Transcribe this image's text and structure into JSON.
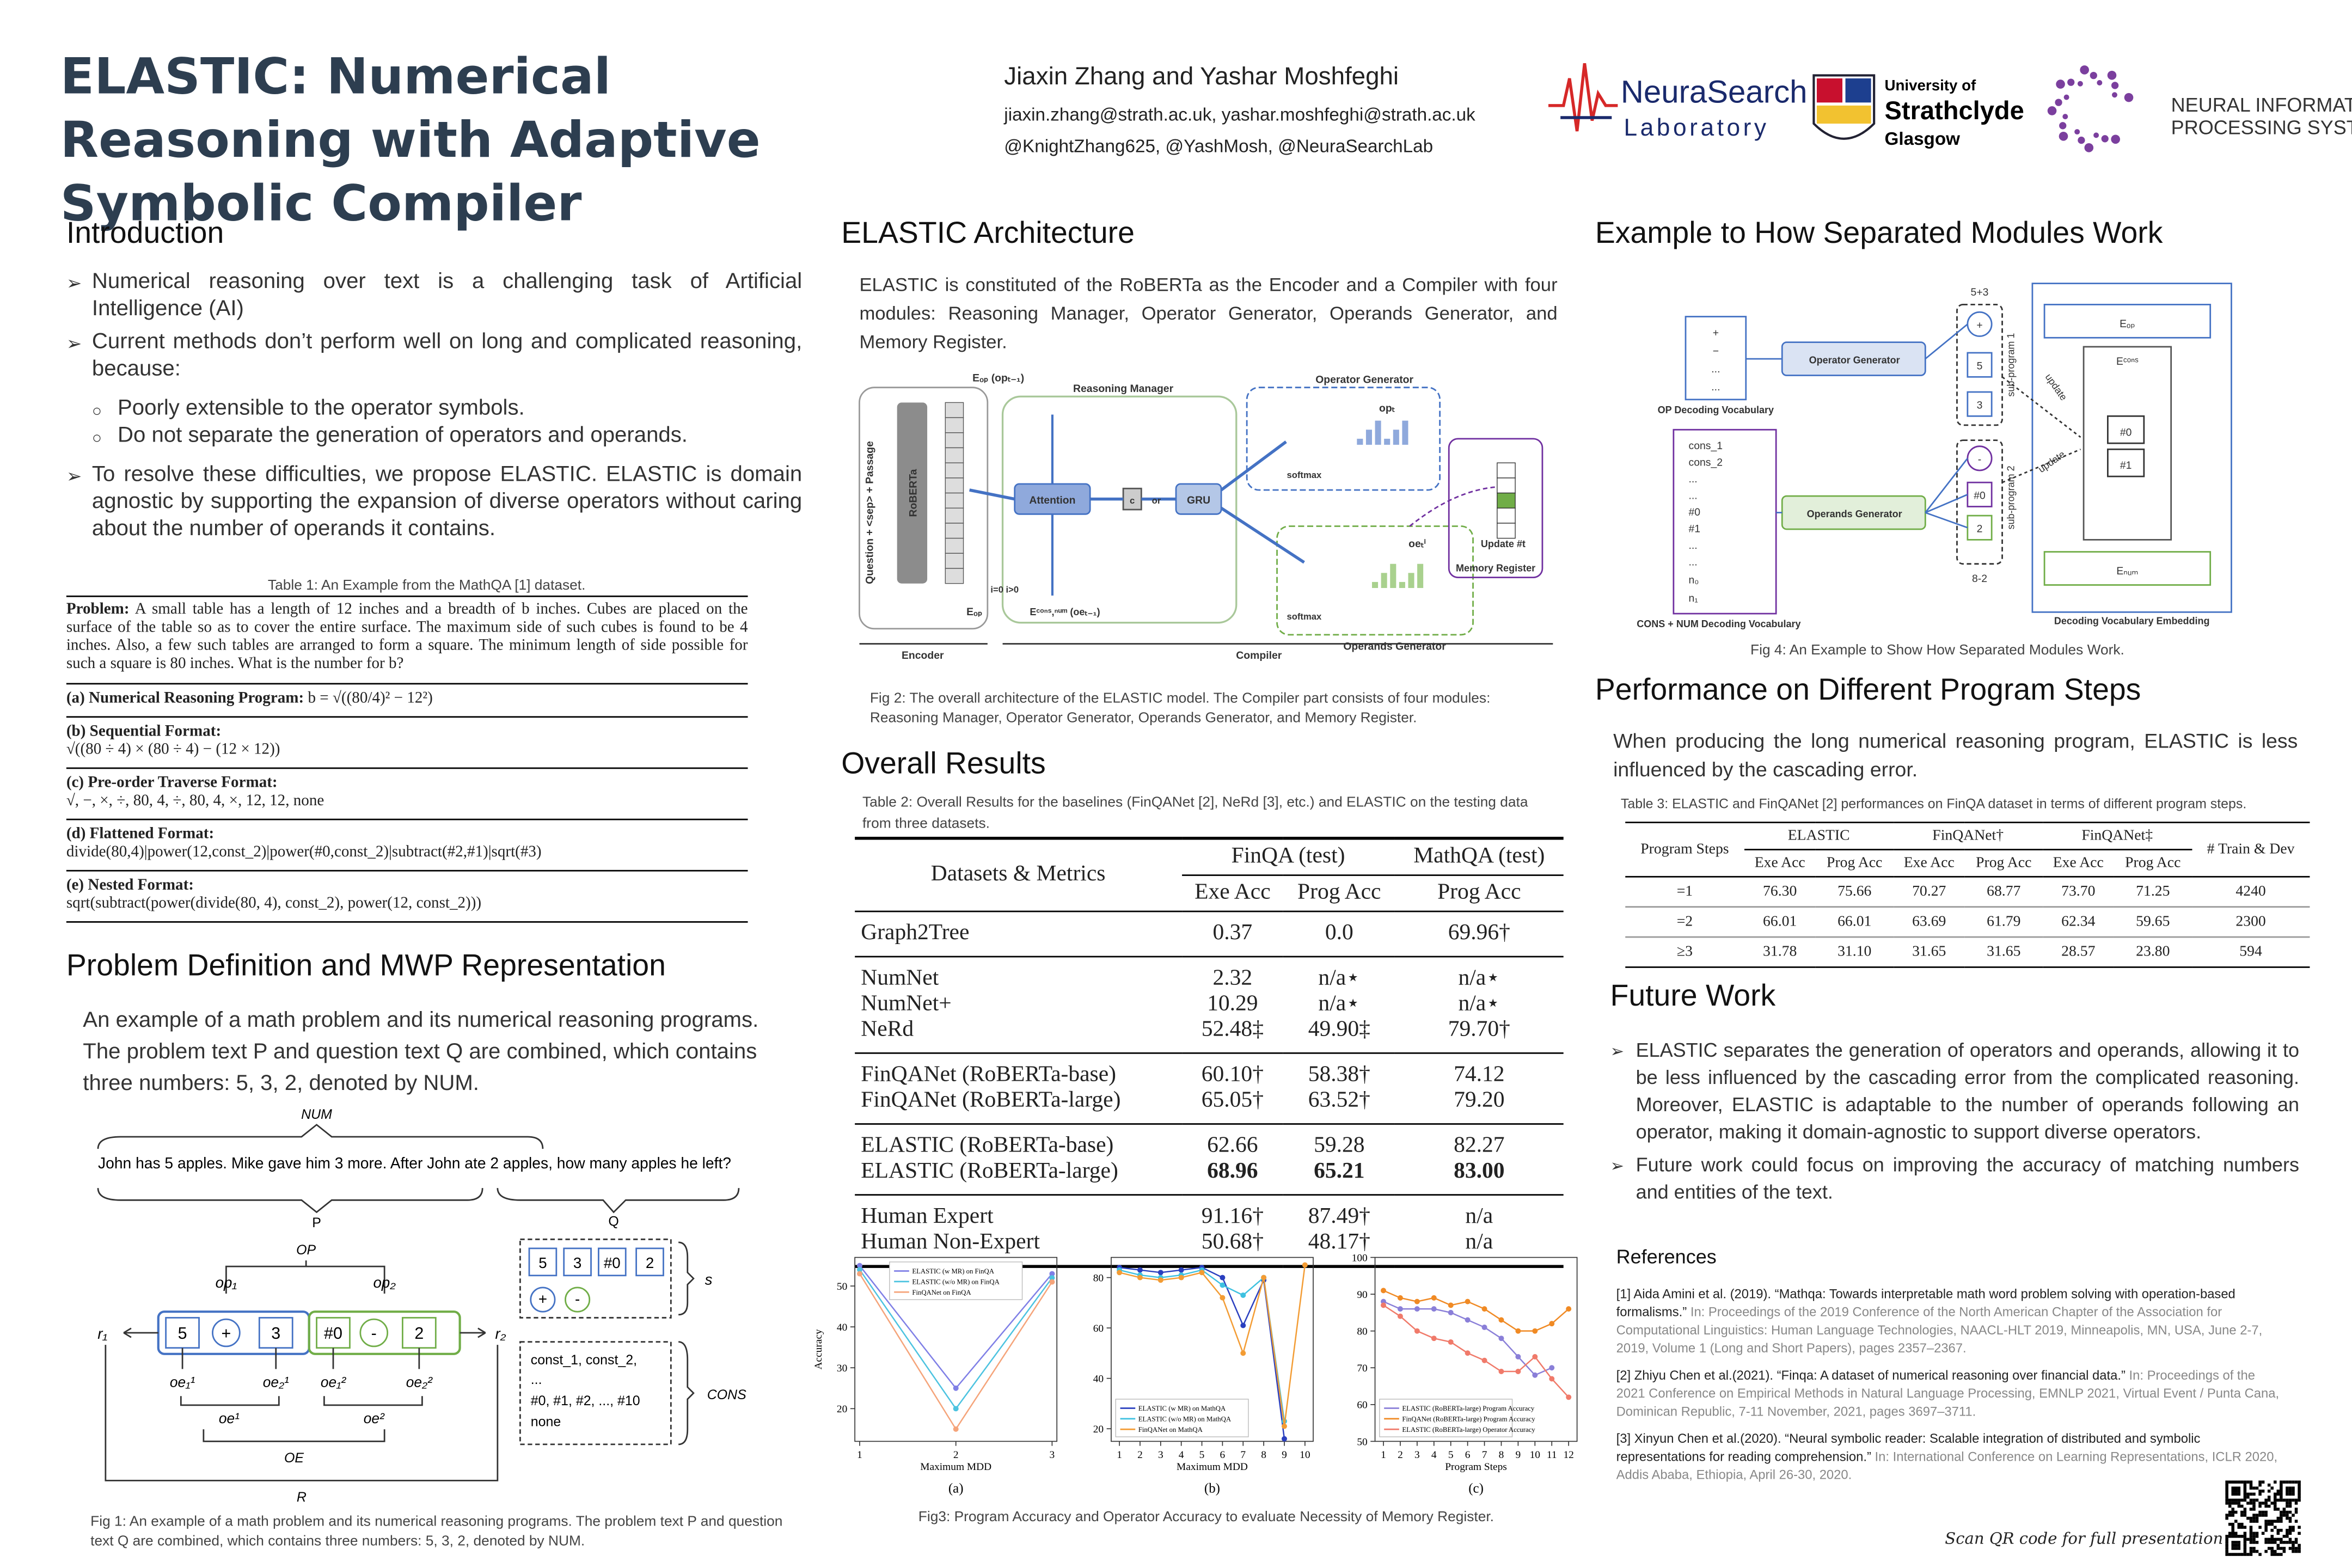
{
  "header": {
    "title": "ELASTIC: Numerical Reasoning with Adaptive Symbolic Compiler",
    "authors": "Jiaxin Zhang and Yashar Moshfeghi",
    "emails": "jiaxin.zhang@strath.ac.uk, yashar.moshfeghi@strath.ac.uk",
    "handles": "@KnightZhang625, @YashMosh, @NeuraSearchLab",
    "logos": [
      "NeuraSearch",
      "Laboratory",
      "University of",
      "Strathclyde",
      "Glasgow",
      "NEURAL INFORMATION",
      "PROCESSING SYSTEMS"
    ]
  },
  "introduction": {
    "heading": "Introduction",
    "items": [
      {
        "text": "Numerical reasoning over text is a challenging task of Artificial Intelligence (AI)"
      },
      {
        "text": "Current methods don’t perform well on long and complicated reasoning, because:",
        "sub": [
          "Poorly extensible to the operator symbols.",
          "Do not separate the generation of operators and operands."
        ]
      },
      {
        "text": "To resolve these difficulties, we propose ELASTIC. ELASTIC is domain agnostic by supporting the expansion of diverse operators without caring about the number of operands it contains."
      }
    ]
  },
  "table1": {
    "caption": "Table 1: An Example from the MathQA [1] dataset.",
    "problem_label": "Problem:",
    "problem": "A small table has a length of 12 inches and a breadth of b inches. Cubes are placed on the surface of the table so as to cover the entire surface. The maximum side of such cubes is found to be 4 inches. Also, a few such tables are arranged to form a square. The minimum length of side possible for such a square is 80 inches. What is the number for b?",
    "rows": [
      {
        "label": "(a) Numerical Reasoning Program:",
        "text": "b = √((80/4)² − 12²)"
      },
      {
        "label": "(b) Sequential Format:",
        "text": "√((80 ÷ 4) × (80 ÷ 4) − (12 × 12))"
      },
      {
        "label": "(c) Pre-order Traverse Format:",
        "text": "√, −, ×, ÷, 80, 4, ÷, 80, 4, ×, 12, 12, none"
      },
      {
        "label": "(d) Flattened Format:",
        "text": "divide(80,4)|power(12,const_2)|power(#0,const_2)|subtract(#2,#1)|sqrt(#3)"
      },
      {
        "label": "(e) Nested Format:",
        "text": "sqrt(subtract(power(divide(80, 4), const_2), power(12, const_2)))"
      }
    ]
  },
  "problem_definition": {
    "heading": "Problem Definition and MWP Representation",
    "text": "An example of a math problem and its numerical reasoning programs. The problem text P and question text Q are combined, which contains three numbers: 5, 3, 2, denoted by NUM."
  },
  "figure1": {
    "caption": "Fig 1: An example of a math problem and its numerical reasoning programs. The problem text P and question text Q are combined, which contains three numbers: 5, 3, 2, denoted by NUM.",
    "labels": [
      "NUM",
      "John has 5 apples. Mike gave him 3 more. After John ate 2 apples, how many apples he left?",
      "P",
      "Q",
      "OP",
      "op₁",
      "op₂",
      "r₁",
      "r₂",
      "5",
      "+",
      "3",
      "#0",
      "-",
      "2",
      "oe₁¹",
      "oe₂¹",
      "oe₁²",
      "oe₂²",
      "oe¹",
      "oe²",
      "OE",
      "R",
      "5",
      "3",
      "#0",
      "2",
      "+",
      "-",
      "s",
      "const_1, const_2,",
      "...",
      "#0, #1, #2, ..., #10",
      "none",
      "CONS"
    ]
  },
  "architecture": {
    "heading": "ELASTIC Architecture",
    "text": "ELASTIC is constituted of the RoBERTa as the Encoder and a Compiler with four modules: Reasoning Manager, Operator Generator, Operands Generator, and Memory Register."
  },
  "figure2": {
    "caption": "Fig 2: The overall architecture of the ELASTIC model.  The  Compiler part consists of four modules: Reasoning Manager, Operator Generator, Operands Generator, and Memory Register.",
    "labels": [
      "Question + <sep> + Passage",
      "RoBERTa",
      "Reasoning Manager",
      "Attention",
      "GRU",
      "Operator Generator",
      "Operands Generator",
      "Memory Register",
      "softmax",
      "softmax",
      "Update #t",
      "Encoder",
      "Compiler",
      "Eₒₚ (opₜ₋₁)",
      "Eₒₚ",
      "Eᶜᵒⁿˢ,ⁿᵘᵐ (oeₜ₋₁)",
      "i=0  i>0",
      "c",
      "or",
      "opₜ",
      "oeₜⁱ"
    ]
  },
  "results": {
    "heading": "Overall Results"
  },
  "table2": {
    "caption": "Table 2: Overall Results for the baselines (FinQANet [2], NeRd [3], etc.) and ELASTIC on the testing data from three datasets.",
    "header": [
      "Datasets & Metrics",
      "FinQA (test)",
      "MathQA (test)"
    ],
    "subheader": [
      "Exe Acc",
      "Prog Acc",
      "Prog Acc"
    ],
    "groups": [
      [
        [
          "Graph2Tree",
          "0.37",
          "0.0",
          "69.96†"
        ]
      ],
      [
        [
          "NumNet",
          "2.32",
          "n/a⋆",
          "n/a⋆"
        ],
        [
          "NumNet+",
          "10.29",
          "n/a⋆",
          "n/a⋆"
        ],
        [
          "NeRd",
          "52.48‡",
          "49.90‡",
          "79.70†"
        ]
      ],
      [
        [
          "FinQANet (RoBERTa-base)",
          "60.10†",
          "58.38†",
          "74.12"
        ],
        [
          "FinQANet (RoBERTa-large)",
          "65.05†",
          "63.52†",
          "79.20"
        ]
      ],
      [
        [
          "ELASTIC (RoBERTa-base)",
          "62.66",
          "59.28",
          "82.27"
        ],
        [
          "ELASTIC (RoBERTa-large)",
          "68.96",
          "65.21",
          "83.00"
        ]
      ],
      [
        [
          "Human Expert",
          "91.16†",
          "87.49†",
          "n/a"
        ],
        [
          "Human Non-Expert",
          "50.68†",
          "48.17†",
          "n/a"
        ]
      ]
    ],
    "best_row": [
      3,
      1
    ]
  },
  "chart_data": [
    {
      "type": "line",
      "label": "(a)",
      "ylabel": "Accuracy",
      "xlabel": "Maximum MDD",
      "x": [
        1,
        2,
        3
      ],
      "xlim": [
        0.95,
        3.05
      ],
      "xticks": [
        1,
        2,
        3
      ],
      "ylim": [
        12,
        57
      ],
      "yticks": [
        20,
        30,
        40,
        50
      ],
      "legend": "upper center",
      "series": [
        {
          "name": "ELASTIC (w MR) on FinQA",
          "color": "#7f7fe6",
          "values": [
            55,
            25,
            53
          ]
        },
        {
          "name": "ELASTIC (w/o MR) on FinQA",
          "color": "#4cc3e0",
          "values": [
            54,
            20,
            52
          ]
        },
        {
          "name": "FinQANet on FinQA",
          "color": "#f5a47a",
          "values": [
            53,
            15,
            51
          ]
        }
      ]
    },
    {
      "type": "line",
      "label": "(b)",
      "xlabel": "Maximum MDD",
      "x": [
        1,
        2,
        3,
        4,
        5,
        6,
        7,
        8,
        9,
        10
      ],
      "xlim": [
        0.6,
        10.4
      ],
      "xticks": [
        1,
        2,
        3,
        4,
        5,
        6,
        7,
        8,
        9,
        10
      ],
      "ylim": [
        15,
        88
      ],
      "yticks": [
        20,
        40,
        60,
        80
      ],
      "legend": "lower left",
      "series": [
        {
          "name": "ELASTIC (w MR) on MathQA",
          "color": "#2a3fbf",
          "values": [
            84,
            83,
            82,
            83,
            84,
            80,
            61,
            79,
            16,
            null
          ]
        },
        {
          "name": "ELASTIC (w/o MR) on MathQA",
          "color": "#3ec1e0",
          "values": [
            83,
            81,
            80,
            81,
            83,
            77,
            73,
            80,
            23,
            null
          ]
        },
        {
          "name": "FinQANet on MathQA",
          "color": "#f39c34",
          "values": [
            82,
            80,
            79,
            80,
            82,
            72,
            50,
            80,
            21,
            85
          ]
        }
      ]
    },
    {
      "type": "line",
      "label": "(c)",
      "xlabel": "Program Steps",
      "x": [
        1,
        2,
        3,
        4,
        5,
        6,
        7,
        8,
        9,
        10,
        11,
        12
      ],
      "xlim": [
        0.5,
        12.5
      ],
      "xticks": [
        1,
        2,
        3,
        4,
        5,
        6,
        7,
        8,
        9,
        10,
        11,
        12
      ],
      "ylim": [
        50,
        100
      ],
      "yticks": [
        50,
        60,
        70,
        80,
        90,
        100
      ],
      "legend": "lower left",
      "series": [
        {
          "name": "ELASTIC (RoBERTa-large) Program Accuracy",
          "color": "#8a7fd8",
          "values": [
            88,
            86,
            86,
            86,
            85,
            83,
            81,
            78,
            73,
            68,
            70,
            null
          ]
        },
        {
          "name": "FinQANet (RoBERTa-large) Program Accuracy",
          "color": "#f08a24",
          "values": [
            91,
            89,
            88,
            89,
            87,
            88,
            86,
            83,
            80,
            80,
            82,
            86
          ]
        },
        {
          "name": "ELASTIC (RoBERTa-large) Operator Accuracy",
          "color": "#f07a6a",
          "values": [
            87,
            84,
            80,
            78,
            77,
            74,
            72,
            69,
            69,
            73,
            67,
            62
          ]
        }
      ]
    }
  ],
  "figure3": {
    "caption": "Fig3: Program Accuracy and Operator Accuracy to evaluate Necessity of Memory Register."
  },
  "modules": {
    "heading": "Example to How Separated Modules Work"
  },
  "figure4": {
    "caption": "Fig 4: An Example to Show How Separated Modules Work.",
    "labels": [
      "OP Decoding Vocabulary",
      "Operator Generator",
      "Operands Generator",
      "CONS + NUM Decoding Vocabulary",
      "Decoding Vocabulary Embedding",
      "sub-program 1",
      "sub-program 2",
      "5+3",
      "8-2",
      "update",
      "update",
      "Eₒₚ",
      "Eᶜᵒⁿˢ",
      "#0",
      "#1",
      "Eₙᵤₘ",
      "+",
      "−",
      "...",
      "...",
      "+",
      "5",
      "3",
      "-",
      "#0",
      "2",
      "cons_1",
      "cons_2",
      "...",
      "...",
      "#0",
      "#1",
      "...",
      "...",
      "n₀",
      "n₁"
    ]
  },
  "performance": {
    "heading": "Performance on Different Program Steps",
    "text": "When producing the long numerical reasoning program, ELASTIC is less influenced by the cascading error."
  },
  "table3": {
    "caption": "Table 3: ELASTIC and FinQANet [2] performances on FinQA dataset in terms of different program steps.",
    "header": [
      "Program Steps",
      "ELASTIC",
      "FinQANet†",
      "FinQANet‡",
      "# Train & Dev"
    ],
    "subheader": [
      "Exe Acc",
      "Prog Acc",
      "Exe Acc",
      "Prog Acc",
      "Exe Acc",
      "Prog Acc"
    ],
    "rows": [
      [
        "=1",
        "76.30",
        "75.66",
        "70.27",
        "68.77",
        "73.70",
        "71.25",
        "4240"
      ],
      [
        "=2",
        "66.01",
        "66.01",
        "63.69",
        "61.79",
        "62.34",
        "59.65",
        "2300"
      ],
      [
        "≥3",
        "31.78",
        "31.10",
        "31.65",
        "31.65",
        "28.57",
        "23.80",
        "594"
      ]
    ]
  },
  "future_work": {
    "heading": "Future Work",
    "items": [
      "ELASTIC separates the generation of operators and operands, allowing it to be less influenced by the cascading error from the complicated reasoning. Moreover, ELASTIC is adaptable to the number of operands following an operator, making it domain-agnostic to support diverse operators.",
      "Future work could focus on improving the accuracy of matching numbers and entities of the text."
    ]
  },
  "references": {
    "heading": "References",
    "items": [
      {
        "main": "[1] Aida Amini  et al. (2019). “Mathqa: Towards interpretable math word problem solving with operation-based formalisms.”",
        "venue": "In: Proceedings of the 2019 Conference of the North American Chapter of the Association for Computational Linguistics: Human Language Technologies, NAACL-HLT 2019, Minneapolis, MN, USA, June 2-7, 2019, Volume 1 (Long and Short Papers), pages 2357–2367."
      },
      {
        "main": "[2] Zhiyu Chen et al.(2021). “Finqa: A dataset of numerical reasoning over financial data.”",
        "venue": "In: Proceedings of the 2021 Conference on Empirical Methods in Natural Language Processing, EMNLP 2021, Virtual Event / Punta Cana, Dominican Republic, 7-11 November, 2021, pages 3697–3711."
      },
      {
        "main": "[3] Xinyun Chen  et al.(2020). “Neural symbolic reader: Scalable integration of distributed and symbolic representations for reading comprehension.”",
        "venue": "In: International Conference on Learning Representations, ICLR 2020, Addis Ababa, Ethiopia, April 26-30, 2020."
      }
    ]
  },
  "qr_note": "Scan QR code for full presentation"
}
